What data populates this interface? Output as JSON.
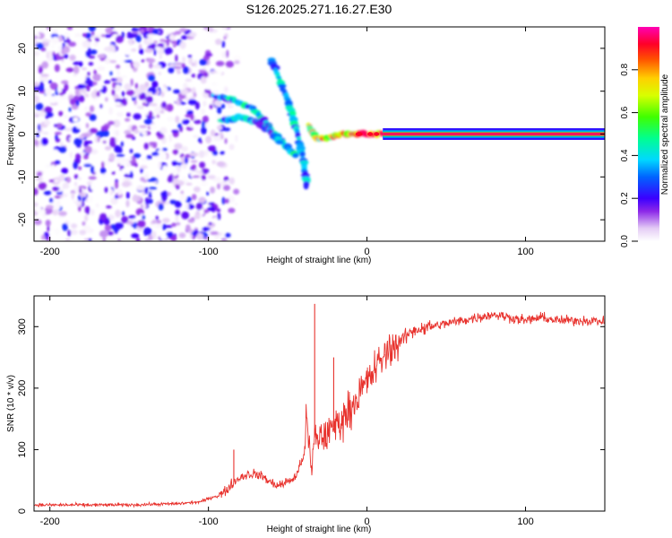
{
  "title": "S126.2025.271.16.27.E30",
  "chart_data": [
    {
      "type": "heatmap",
      "xlabel": "Height of straight line (km)",
      "ylabel": "Frequency (Hz)",
      "xlim": [
        -210,
        150
      ],
      "ylim": [
        -25,
        25
      ],
      "x_ticks": [
        -200,
        -100,
        0,
        100
      ],
      "x_tick_labels": [
        "-200",
        "-100",
        "0",
        "100"
      ],
      "y_ticks": [
        -20,
        -10,
        0,
        10,
        20
      ],
      "y_tick_labels": [
        "-20",
        "-10",
        "0",
        "10",
        "20"
      ],
      "colorbar": {
        "label": "Normalized spectral amplitude",
        "range": [
          0,
          1
        ],
        "ticks": [
          0.0,
          0.2,
          0.4,
          0.6,
          0.8
        ],
        "tick_labels": [
          "0.0",
          "0.2",
          "0.4",
          "0.6",
          "0.8"
        ]
      },
      "features": [
        {
          "name": "noise",
          "x_range": [
            -210,
            -95
          ],
          "y_range": [
            -25,
            25
          ],
          "amplitude": 0.15
        },
        {
          "name": "upper-streak",
          "points": [
            [
              -97,
              9
            ],
            [
              -85,
              8
            ],
            [
              -72,
              6
            ],
            [
              -64,
              3
            ],
            [
              -58,
              0
            ],
            [
              -50,
              -3
            ],
            [
              -45,
              -5
            ]
          ],
          "amplitude": 0.35
        },
        {
          "name": "lower-streak",
          "points": [
            [
              -92,
              3
            ],
            [
              -80,
              4
            ],
            [
              -70,
              3
            ],
            [
              -62,
              1
            ],
            [
              -55,
              -2
            ]
          ],
          "amplitude": 0.3
        },
        {
          "name": "steep-streak",
          "points": [
            [
              -60,
              17
            ],
            [
              -52,
              10
            ],
            [
              -46,
              3
            ],
            [
              -40,
              -6
            ],
            [
              -38,
              -12
            ]
          ],
          "amplitude": 0.35
        },
        {
          "name": "converging-streak",
          "points": [
            [
              -37,
              2
            ],
            [
              -32,
              -1
            ],
            [
              -25,
              -1
            ],
            [
              -18,
              0
            ],
            [
              -10,
              0
            ],
            [
              -2,
              0
            ],
            [
              10,
              0
            ]
          ],
          "amplitude": 0.6
        },
        {
          "name": "carrier-line",
          "x_range": [
            10,
            150
          ],
          "y": 0,
          "amplitude": 1.0
        }
      ]
    },
    {
      "type": "line",
      "xlabel": "Height of straight line (km)",
      "ylabel": "SNR (10 * v/v)",
      "xlim": [
        -210,
        150
      ],
      "ylim": [
        0,
        350
      ],
      "x_ticks": [
        -200,
        -100,
        0,
        100
      ],
      "x_tick_labels": [
        "-200",
        "-100",
        "0",
        "100"
      ],
      "y_ticks": [
        0,
        100,
        200,
        300
      ],
      "y_tick_labels": [
        "0",
        "100",
        "200",
        "300"
      ],
      "color": "#e8322d",
      "x": [
        -210,
        -180,
        -150,
        -120,
        -105,
        -95,
        -90,
        -85,
        -80,
        -75,
        -70,
        -65,
        -60,
        -55,
        -50,
        -45,
        -40,
        -38,
        -35,
        -33,
        -30,
        -25,
        -20,
        -15,
        -10,
        -5,
        0,
        5,
        10,
        15,
        20,
        25,
        30,
        40,
        50,
        60,
        70,
        80,
        90,
        100,
        110,
        120,
        130,
        140,
        150
      ],
      "y": [
        10,
        10,
        10,
        12,
        15,
        25,
        30,
        45,
        55,
        60,
        60,
        55,
        45,
        42,
        48,
        55,
        90,
        150,
        60,
        120,
        120,
        125,
        140,
        150,
        170,
        190,
        210,
        230,
        250,
        265,
        275,
        285,
        295,
        300,
        305,
        310,
        315,
        320,
        315,
        310,
        315,
        310,
        310,
        310,
        308
      ],
      "spikes": [
        {
          "x": -84,
          "y": 100
        },
        {
          "x": -33,
          "y": 337
        },
        {
          "x": -21,
          "y": 250
        },
        {
          "x": 11,
          "y": 255
        }
      ]
    }
  ]
}
